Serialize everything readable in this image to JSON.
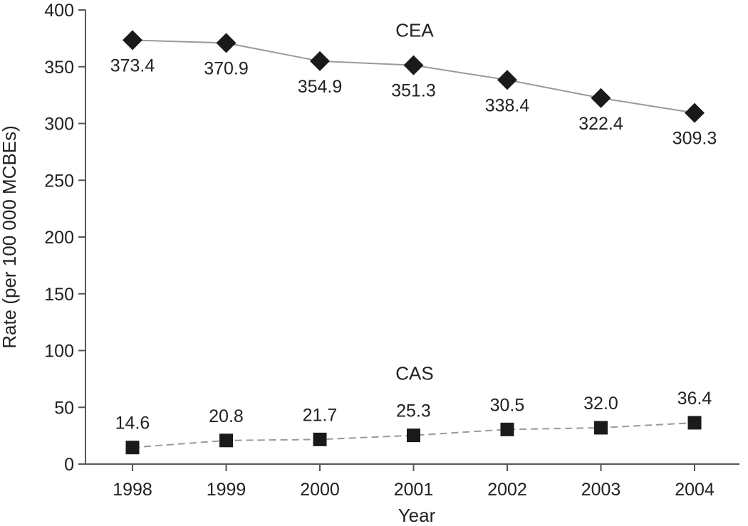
{
  "chart_data": {
    "type": "line",
    "categories": [
      "1998",
      "1999",
      "2000",
      "2001",
      "2002",
      "2003",
      "2004"
    ],
    "series": [
      {
        "name": "CEA",
        "values": [
          373.4,
          370.9,
          354.9,
          351.3,
          338.4,
          322.4,
          309.3
        ],
        "value_labels": [
          "373.4",
          "370.9",
          "354.9",
          "351.3",
          "338.4",
          "322.4",
          "309.3"
        ],
        "marker": "diamond",
        "line_style": "solid",
        "line_color": "#9a9a9a",
        "marker_color": "#1a1a1a"
      },
      {
        "name": "CAS",
        "values": [
          14.6,
          20.8,
          21.7,
          25.3,
          30.5,
          32.0,
          36.4
        ],
        "value_labels": [
          "14.6",
          "20.8",
          "21.7",
          "25.3",
          "30.5",
          "32.0",
          "36.4"
        ],
        "marker": "square",
        "line_style": "dashed",
        "line_color": "#9a9a9a",
        "marker_color": "#1a1a1a"
      }
    ],
    "xlabel": "Year",
    "ylabel": "Rate (per 100 000 MCBEs)",
    "ylim": [
      0,
      400
    ],
    "yticks": [
      "0",
      "50",
      "100",
      "150",
      "200",
      "250",
      "300",
      "350",
      "400"
    ],
    "grid": false,
    "legend": "none"
  }
}
